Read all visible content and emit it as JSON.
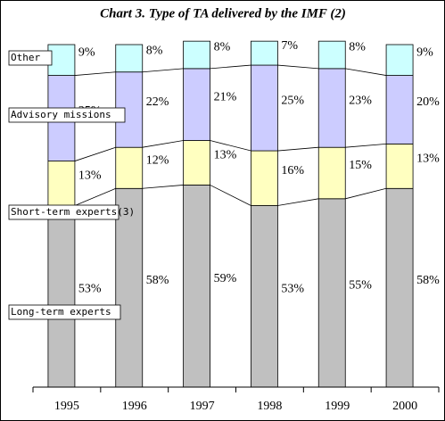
{
  "chart_data": {
    "type": "stacked-bar",
    "title": "Chart 3. Type of TA delivered by the IMF (2)",
    "categories": [
      "1995",
      "1996",
      "1997",
      "1998",
      "1999",
      "2000"
    ],
    "ylim": [
      0,
      100
    ],
    "series": [
      {
        "name": "Long-term experts",
        "color": "#c0c0c0",
        "values": [
          53,
          58,
          59,
          53,
          55,
          58
        ],
        "value_labels": [
          "53%",
          "58%",
          "59%",
          "53%",
          "55%",
          "58%"
        ]
      },
      {
        "name": "Short-term experts(3)",
        "color": "#ffffc0",
        "values": [
          13,
          12,
          13,
          16,
          15,
          13
        ],
        "value_labels": [
          "13%",
          "12%",
          "13%",
          "16%",
          "15%",
          "13%"
        ]
      },
      {
        "name": "Advisory missions",
        "color": "#ccccff",
        "values": [
          25,
          22,
          21,
          25,
          23,
          20
        ],
        "value_labels": [
          "25%",
          "22%",
          "21%",
          "25%",
          "23%",
          "20%"
        ]
      },
      {
        "name": "Other",
        "color": "#ccffff",
        "values": [
          9,
          8,
          8,
          7,
          8,
          9
        ],
        "value_labels": [
          "9%",
          "8%",
          "8%",
          "7%",
          "8%",
          "9%"
        ]
      }
    ]
  }
}
